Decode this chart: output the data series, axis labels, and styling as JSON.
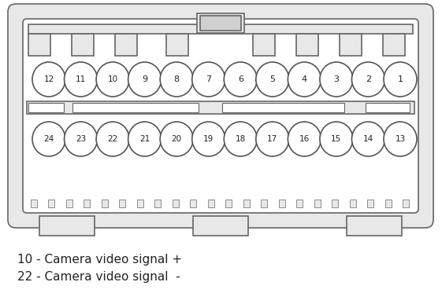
{
  "background_color": "#ffffff",
  "connector_outer_fill": "#e8e8e8",
  "connector_inner_fill": "#f0f0f0",
  "outline_color": "#666666",
  "circle_fill": "#ffffff",
  "circle_edge": "#555555",
  "top_row": [
    12,
    11,
    10,
    9,
    8,
    7,
    6,
    5,
    4,
    3,
    2,
    1
  ],
  "bottom_row": [
    24,
    23,
    22,
    21,
    20,
    19,
    18,
    17,
    16,
    15,
    14,
    13
  ],
  "label1": "10 - Camera video signal +",
  "label2": "22 - Camera video signal  -",
  "text_color": "#222222",
  "label_fontsize": 11.0,
  "connector_lw": 1.2
}
